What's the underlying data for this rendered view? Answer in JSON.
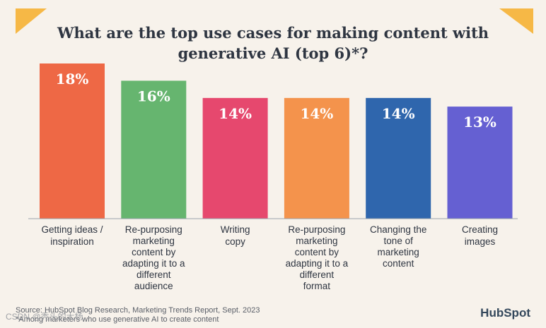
{
  "chart_data": {
    "type": "bar",
    "title": "What are the top use cases for making content with generative AI (top 6)*?",
    "categories": [
      "Getting ideas / inspiration",
      "Re-purposing marketing content by adapting it to a different audience",
      "Writing copy",
      "Re-purposing marketing content by adapting it to a different format",
      "Changing the tone of marketing content",
      "Creating images"
    ],
    "category_lines": [
      [
        "Getting ideas /",
        "inspiration"
      ],
      [
        "Re-purposing",
        "marketing",
        "content by",
        "adapting it to a",
        "different",
        "audience"
      ],
      [
        "Writing",
        "copy"
      ],
      [
        "Re-purposing",
        "marketing",
        "content by",
        "adapting it to a",
        "different",
        "format"
      ],
      [
        "Changing the",
        "tone of",
        "marketing",
        "content"
      ],
      [
        "Creating",
        "images"
      ]
    ],
    "values": [
      18,
      16,
      14,
      14,
      14,
      13
    ],
    "data_labels": [
      "18%",
      "16%",
      "14%",
      "14%",
      "14%",
      "13%"
    ],
    "colors": [
      "#ee6845",
      "#66b56f",
      "#e6486e",
      "#f4934c",
      "#2f66ad",
      "#6560d2"
    ],
    "ylim": [
      0,
      18
    ],
    "xlabel": "",
    "ylabel": "",
    "grid": false,
    "legend": "none"
  },
  "footer": {
    "source": "Source: HubSpot Blog Research, Marketing Trends Report, Sept. 2023",
    "note": "*Among marketers who use generative AI to create content",
    "logo": "HubSpot",
    "watermark": "CSDN @秃头的大杨"
  },
  "colors": {
    "background": "#f7f2eb",
    "corner_accent": "#f6b846",
    "title": "#2e3541",
    "baseline": "#9aa3ad"
  }
}
